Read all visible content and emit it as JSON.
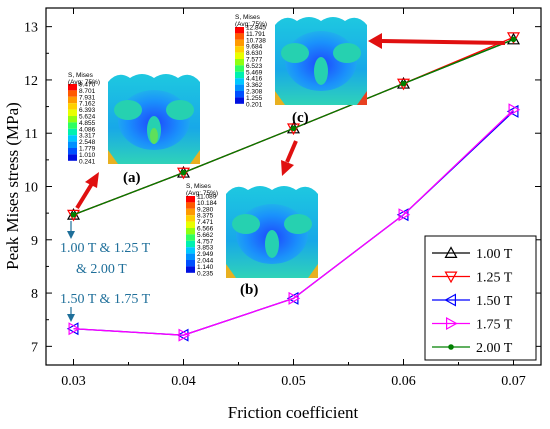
{
  "chart_data": {
    "type": "line",
    "xlabel": "Friction coefficient",
    "ylabel": "Peak Mises stress (MPa)",
    "xlim": [
      0.0275,
      0.0725
    ],
    "ylim": [
      6.65,
      13.35
    ],
    "xticks": [
      "0.03",
      "0.04",
      "0.05",
      "0.06",
      "0.07"
    ],
    "yticks": [
      "7",
      "8",
      "9",
      "10",
      "11",
      "12",
      "13"
    ],
    "x": [
      0.03,
      0.04,
      0.05,
      0.06,
      0.07
    ],
    "series": [
      {
        "name": "1.00 T",
        "color": "#000000",
        "marker": "triangle-up",
        "values": [
          9.47,
          10.26,
          11.09,
          11.93,
          12.76
        ]
      },
      {
        "name": "1.25 T",
        "color": "#ff0000",
        "marker": "triangle-down",
        "values": [
          9.47,
          10.26,
          11.09,
          11.93,
          12.8
        ]
      },
      {
        "name": "1.50 T",
        "color": "#0000ff",
        "marker": "triangle-left",
        "values": [
          7.33,
          7.21,
          7.9,
          9.47,
          11.41
        ]
      },
      {
        "name": "1.75 T",
        "color": "#ff00ff",
        "marker": "triangle-right",
        "values": [
          7.33,
          7.21,
          7.9,
          9.47,
          11.44
        ]
      },
      {
        "name": "2.00 T",
        "color": "#008000",
        "marker": "dot",
        "values": [
          9.47,
          10.26,
          11.09,
          11.93,
          12.76
        ]
      }
    ],
    "legend_position": "bottom-right",
    "grid": false,
    "annotations": {
      "group_high_line1": "1.00 T & 1.25 T",
      "group_high_line2": "& 2.00 T",
      "group_low": "1.50 T & 1.75 T",
      "panel_a": "(a)",
      "panel_b": "(b)",
      "panel_c": "(c)"
    },
    "insets": {
      "a": {
        "title1": "S, Mises",
        "title2": "(Avg: 75%)",
        "levels": [
          "9.470",
          "8.701",
          "7.931",
          "7.162",
          "6.393",
          "5.624",
          "4.855",
          "4.086",
          "3.317",
          "2.548",
          "1.779",
          "1.010",
          "0.241"
        ]
      },
      "b": {
        "title1": "S, Mises",
        "title2": "(Avg: 75%)",
        "levels": [
          "11.089",
          "10.184",
          "9.280",
          "8.375",
          "7.471",
          "6.566",
          "5.662",
          "4.757",
          "3.853",
          "2.949",
          "2.044",
          "1.140",
          "0.235"
        ]
      },
      "c": {
        "title1": "S, Mises",
        "title2": "(Avg: 75%)",
        "levels": [
          "12.845",
          "11.791",
          "10.738",
          "9.684",
          "8.630",
          "7.577",
          "6.523",
          "5.469",
          "4.416",
          "3.362",
          "2.308",
          "1.255",
          "0.201"
        ]
      }
    }
  }
}
